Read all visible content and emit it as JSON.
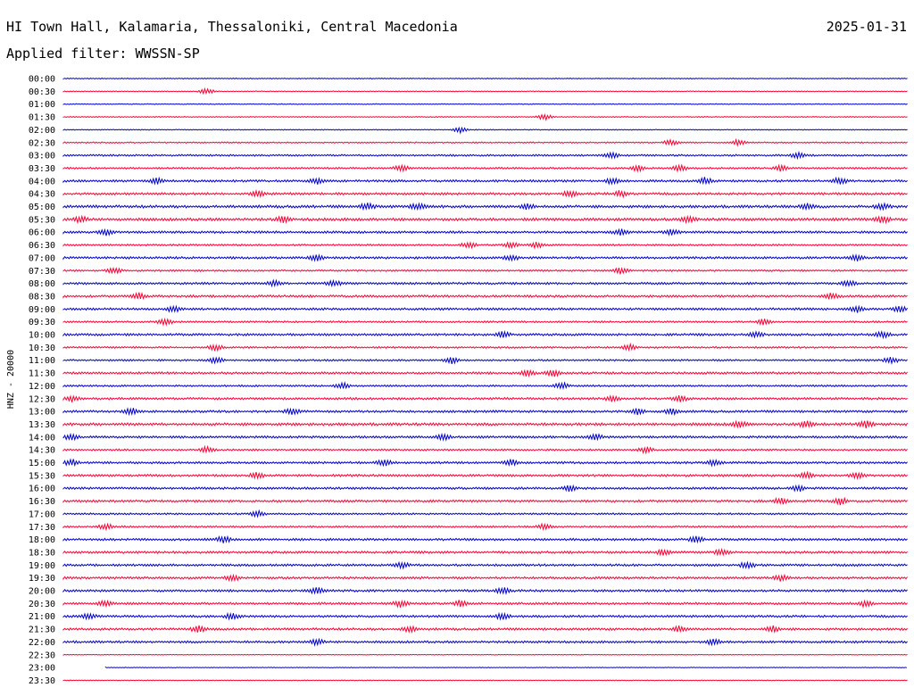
{
  "header": {
    "station": "HI Town Hall, Kalamaria, Thessaloniki, Central Macedonia",
    "date": "2025-01-31",
    "filter_label": "Applied filter: WWSSN-SP"
  },
  "chart_data": {
    "type": "line",
    "title": "HI Town Hall, Kalamaria, Thessaloniki, Central Macedonia",
    "ylabel": "HNZ - 20000",
    "row_interval_minutes": 30,
    "colors": [
      "#0000cc",
      "#ff0033"
    ],
    "rows": [
      {
        "time": "00:00",
        "amplitude": 1,
        "bursts": []
      },
      {
        "time": "00:30",
        "amplitude": 1,
        "bursts": [
          0.17
        ]
      },
      {
        "time": "01:00",
        "amplitude": 1,
        "bursts": []
      },
      {
        "time": "01:30",
        "amplitude": 1,
        "bursts": [
          0.57
        ]
      },
      {
        "time": "02:00",
        "amplitude": 1,
        "bursts": [
          0.47
        ]
      },
      {
        "time": "02:30",
        "amplitude": 1.5,
        "bursts": [
          0.72,
          0.8
        ]
      },
      {
        "time": "03:00",
        "amplitude": 2,
        "bursts": [
          0.65,
          0.87
        ]
      },
      {
        "time": "03:30",
        "amplitude": 2,
        "bursts": [
          0.4,
          0.68,
          0.73,
          0.85
        ]
      },
      {
        "time": "04:00",
        "amplitude": 2.5,
        "bursts": [
          0.11,
          0.3,
          0.65,
          0.76,
          0.92
        ]
      },
      {
        "time": "04:30",
        "amplitude": 2.5,
        "bursts": [
          0.23,
          0.6,
          0.66
        ]
      },
      {
        "time": "05:00",
        "amplitude": 3,
        "bursts": [
          0.36,
          0.42,
          0.55,
          0.88,
          0.97
        ]
      },
      {
        "time": "05:30",
        "amplitude": 3,
        "bursts": [
          0.02,
          0.26,
          0.74,
          0.97
        ]
      },
      {
        "time": "06:00",
        "amplitude": 2.5,
        "bursts": [
          0.05,
          0.66,
          0.72
        ]
      },
      {
        "time": "06:30",
        "amplitude": 2,
        "bursts": [
          0.48,
          0.53,
          0.56
        ]
      },
      {
        "time": "07:00",
        "amplitude": 2.5,
        "bursts": [
          0.3,
          0.53,
          0.94
        ]
      },
      {
        "time": "07:30",
        "amplitude": 2,
        "bursts": [
          0.06,
          0.66
        ]
      },
      {
        "time": "08:00",
        "amplitude": 2.5,
        "bursts": [
          0.25,
          0.32,
          0.93
        ]
      },
      {
        "time": "08:30",
        "amplitude": 2.5,
        "bursts": [
          0.09,
          0.91
        ]
      },
      {
        "time": "09:00",
        "amplitude": 2.5,
        "bursts": [
          0.13,
          0.94,
          0.99
        ]
      },
      {
        "time": "09:30",
        "amplitude": 2,
        "bursts": [
          0.12,
          0.83
        ]
      },
      {
        "time": "10:00",
        "amplitude": 2.5,
        "bursts": [
          0.52,
          0.82,
          0.97
        ]
      },
      {
        "time": "10:30",
        "amplitude": 2,
        "bursts": [
          0.18,
          0.67
        ]
      },
      {
        "time": "11:00",
        "amplitude": 2,
        "bursts": [
          0.18,
          0.46,
          0.98
        ]
      },
      {
        "time": "11:30",
        "amplitude": 2.5,
        "bursts": [
          0.55,
          0.58
        ]
      },
      {
        "time": "12:00",
        "amplitude": 2,
        "bursts": [
          0.33,
          0.59
        ]
      },
      {
        "time": "12:30",
        "amplitude": 2.5,
        "bursts": [
          0.01,
          0.65,
          0.73
        ]
      },
      {
        "time": "13:00",
        "amplitude": 2.5,
        "bursts": [
          0.08,
          0.27,
          0.68,
          0.72
        ]
      },
      {
        "time": "13:30",
        "amplitude": 3,
        "bursts": [
          0.8,
          0.88,
          0.95
        ]
      },
      {
        "time": "14:00",
        "amplitude": 2.5,
        "bursts": [
          0.01,
          0.45,
          0.63
        ]
      },
      {
        "time": "14:30",
        "amplitude": 2,
        "bursts": [
          0.17,
          0.69
        ]
      },
      {
        "time": "15:00",
        "amplitude": 2.5,
        "bursts": [
          0.01,
          0.38,
          0.53,
          0.77
        ]
      },
      {
        "time": "15:30",
        "amplitude": 2.5,
        "bursts": [
          0.23,
          0.88,
          0.94
        ]
      },
      {
        "time": "16:00",
        "amplitude": 2.5,
        "bursts": [
          0.6,
          0.87
        ]
      },
      {
        "time": "16:30",
        "amplitude": 2.5,
        "bursts": [
          0.85,
          0.92
        ]
      },
      {
        "time": "17:00",
        "amplitude": 2,
        "bursts": [
          0.23
        ]
      },
      {
        "time": "17:30",
        "amplitude": 2,
        "bursts": [
          0.05,
          0.57
        ]
      },
      {
        "time": "18:00",
        "amplitude": 2.5,
        "bursts": [
          0.19,
          0.75
        ]
      },
      {
        "time": "18:30",
        "amplitude": 2.5,
        "bursts": [
          0.71,
          0.78
        ]
      },
      {
        "time": "19:00",
        "amplitude": 2.5,
        "bursts": [
          0.4,
          0.81
        ]
      },
      {
        "time": "19:30",
        "amplitude": 2.5,
        "bursts": [
          0.2,
          0.85
        ]
      },
      {
        "time": "20:00",
        "amplitude": 2.5,
        "bursts": [
          0.3,
          0.52
        ]
      },
      {
        "time": "20:30",
        "amplitude": 2.5,
        "bursts": [
          0.05,
          0.4,
          0.47,
          0.95
        ]
      },
      {
        "time": "21:00",
        "amplitude": 2.5,
        "bursts": [
          0.03,
          0.2,
          0.52
        ]
      },
      {
        "time": "21:30",
        "amplitude": 2.5,
        "bursts": [
          0.16,
          0.41,
          0.73,
          0.84
        ]
      },
      {
        "time": "22:00",
        "amplitude": 2.5,
        "bursts": [
          0.3,
          0.77
        ]
      },
      {
        "time": "22:30",
        "amplitude": 0.8,
        "bursts": []
      },
      {
        "time": "23:00",
        "amplitude": 0.8,
        "bursts": [],
        "start_fraction": 0.05
      },
      {
        "time": "23:30",
        "amplitude": 0.8,
        "bursts": []
      }
    ]
  }
}
